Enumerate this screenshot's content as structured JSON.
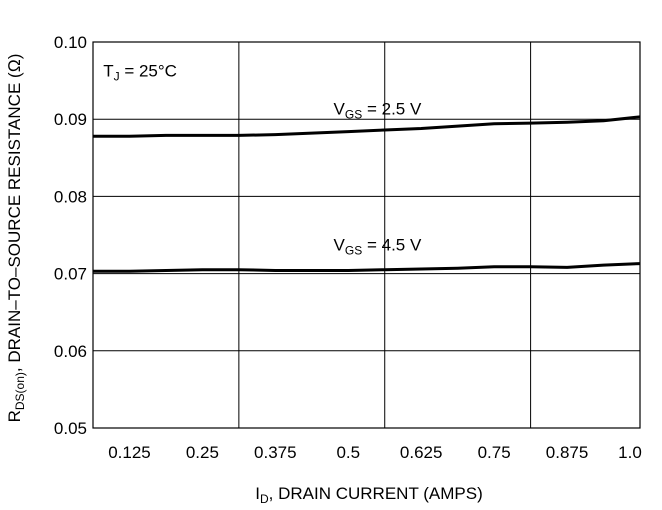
{
  "chart_data": {
    "type": "line",
    "xlabel": {
      "main": "I",
      "sub": "D",
      "rest": ", DRAIN CURRENT (AMPS)"
    },
    "ylabel": {
      "main": "R",
      "sub": "DS(on)",
      "rest": ", DRAIN–TO–SOURCE RESISTANCE (Ω)"
    },
    "xlim": [
      0.0625,
      1.0
    ],
    "ylim": [
      0.05,
      0.1
    ],
    "x_ticks": [
      {
        "value": 0.125,
        "label": "0.125"
      },
      {
        "value": 0.25,
        "label": "0.25"
      },
      {
        "value": 0.375,
        "label": "0.375"
      },
      {
        "value": 0.5,
        "label": "0.5"
      },
      {
        "value": 0.625,
        "label": "0.625"
      },
      {
        "value": 0.75,
        "label": "0.75"
      },
      {
        "value": 0.875,
        "label": "0.875"
      },
      {
        "value": 1.0,
        "label": "1.0"
      }
    ],
    "y_ticks": [
      {
        "value": 0.05,
        "label": "0.05"
      },
      {
        "value": 0.06,
        "label": "0.06"
      },
      {
        "value": 0.07,
        "label": "0.07"
      },
      {
        "value": 0.08,
        "label": "0.08"
      },
      {
        "value": 0.09,
        "label": "0.09"
      },
      {
        "value": 0.1,
        "label": "0.10"
      }
    ],
    "x_gridlines": [
      0.3125,
      0.5625,
      0.8125
    ],
    "y_gridlines": [
      0.06,
      0.07,
      0.08,
      0.09
    ],
    "grid": true,
    "series": [
      {
        "x": [
          0.0625,
          0.125,
          0.1875,
          0.25,
          0.3125,
          0.375,
          0.4375,
          0.5,
          0.5625,
          0.625,
          0.6875,
          0.75,
          0.8125,
          0.875,
          0.9375,
          1.0
        ],
        "y": [
          0.0878,
          0.0878,
          0.0879,
          0.0879,
          0.0879,
          0.088,
          0.0882,
          0.0884,
          0.0886,
          0.0888,
          0.0891,
          0.0894,
          0.0895,
          0.0896,
          0.0898,
          0.0903
        ]
      },
      {
        "x": [
          0.0625,
          0.125,
          0.1875,
          0.25,
          0.3125,
          0.375,
          0.4375,
          0.5,
          0.5625,
          0.625,
          0.6875,
          0.75,
          0.8125,
          0.875,
          0.9375,
          1.0
        ],
        "y": [
          0.0703,
          0.0703,
          0.0704,
          0.0705,
          0.0705,
          0.0704,
          0.0704,
          0.0704,
          0.0705,
          0.0706,
          0.0707,
          0.0709,
          0.0709,
          0.0708,
          0.0711,
          0.0713
        ]
      }
    ],
    "annotations": [
      {
        "main": "T",
        "sub": "J",
        "rest": " = 25°C",
        "x": 0.08,
        "y": 0.0955
      },
      {
        "main": "V",
        "sub": "GS",
        "rest": " = 2.5 V",
        "x": 0.55,
        "y": 0.0906
      },
      {
        "main": "V",
        "sub": "GS",
        "rest": " = 4.5 V",
        "x": 0.55,
        "y": 0.073
      }
    ],
    "line_color": "#000000"
  }
}
